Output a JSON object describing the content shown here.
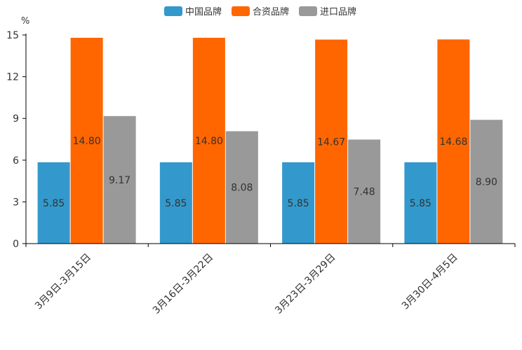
{
  "chart_data": {
    "type": "bar",
    "title": "",
    "xlabel": "",
    "ylabel": "%",
    "ylim": [
      0,
      15
    ],
    "yticks": [
      0,
      3,
      6,
      9,
      12,
      15
    ],
    "grid": false,
    "legend_position": "top-center",
    "categories": [
      "3月9日-3月15日",
      "3月16日-3月22日",
      "3月23日-3月29日",
      "3月30日-4月5日"
    ],
    "series": [
      {
        "name": "中国品牌",
        "color": "#3399cc",
        "values": [
          5.85,
          5.85,
          5.85,
          5.85
        ],
        "labels": [
          "5.85",
          "5.85",
          "5.85",
          "5.85"
        ]
      },
      {
        "name": "合资品牌",
        "color": "#ff6600",
        "values": [
          14.8,
          14.8,
          14.67,
          14.68
        ],
        "labels": [
          "14.80",
          "14.80",
          "14.67",
          "14.68"
        ]
      },
      {
        "name": "进口品牌",
        "color": "#999999",
        "values": [
          9.17,
          8.08,
          7.48,
          8.9
        ],
        "labels": [
          "9.17",
          "8.08",
          "7.48",
          "8.90"
        ]
      }
    ]
  }
}
